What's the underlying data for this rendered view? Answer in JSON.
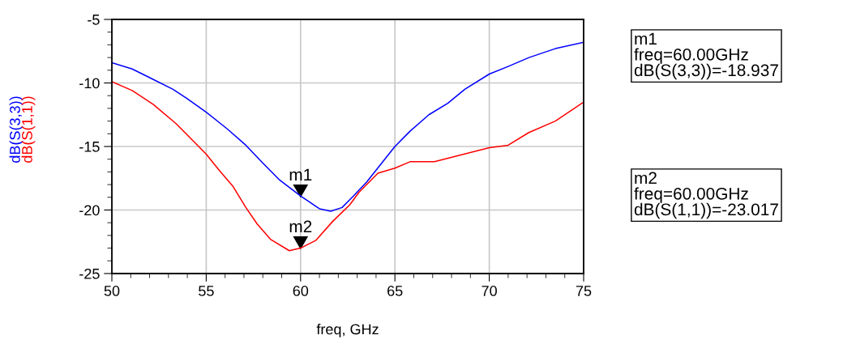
{
  "chart_data": {
    "type": "line",
    "xlabel": "freq, GHz",
    "xlim": [
      50,
      75
    ],
    "xticks": [
      50,
      55,
      60,
      65,
      70,
      75
    ],
    "ylim": [
      -25,
      -5
    ],
    "yticks": [
      -25,
      -20,
      -15,
      -10,
      -5
    ],
    "grid": true,
    "legend": false,
    "marker": "none",
    "line_style": "solid",
    "series": [
      {
        "name": "dB(S(3,3))",
        "color": "#0000ff",
        "x": [
          50,
          51.08,
          52.16,
          53.24,
          53.96,
          55,
          56.1,
          57.1,
          58.0,
          58.86,
          60,
          61.0,
          61.6,
          62.2,
          62.8,
          63.5,
          64.3,
          65,
          65.8,
          66.8,
          67.8,
          68.7,
          70,
          71.0,
          72.1,
          73.5,
          75
        ],
        "values": [
          -8.4,
          -8.9,
          -9.7,
          -10.5,
          -11.2,
          -12.3,
          -13.6,
          -14.9,
          -16.3,
          -17.6,
          -18.9,
          -19.9,
          -20.1,
          -19.8,
          -18.9,
          -17.8,
          -16.3,
          -15.0,
          -13.8,
          -12.5,
          -11.6,
          -10.5,
          -9.3,
          -8.7,
          -8.0,
          -7.3,
          -6.8
        ]
      },
      {
        "name": "dB(S(1,1))",
        "color": "#ff0000",
        "x": [
          50,
          51.08,
          52.2,
          53.4,
          54.4,
          55,
          55.7,
          56.4,
          57.1,
          57.7,
          58.4,
          59.4,
          60,
          60.8,
          61.7,
          62.6,
          63.1,
          64.1,
          65,
          65.8,
          67.1,
          68.4,
          70,
          71.0,
          72.1,
          73.5,
          75
        ],
        "values": [
          -9.9,
          -10.6,
          -11.7,
          -13.2,
          -14.7,
          -15.6,
          -16.9,
          -18.1,
          -19.8,
          -21.1,
          -22.3,
          -23.2,
          -23.0,
          -22.4,
          -20.9,
          -19.6,
          -18.6,
          -17.1,
          -16.7,
          -16.2,
          -16.2,
          -15.7,
          -15.1,
          -14.9,
          -13.9,
          -13.0,
          -11.5
        ]
      }
    ],
    "annotations": [
      {
        "text": "m1",
        "x": 60,
        "y": -18.937
      },
      {
        "text": "m2",
        "x": 60,
        "y": -23.017
      },
      "m1\nfreq=60.00GHz\ndB(S(3,3))=-18.937",
      "m2\nfreq=60.00GHz\ndB(S(1,1))=-23.017"
    ]
  }
}
